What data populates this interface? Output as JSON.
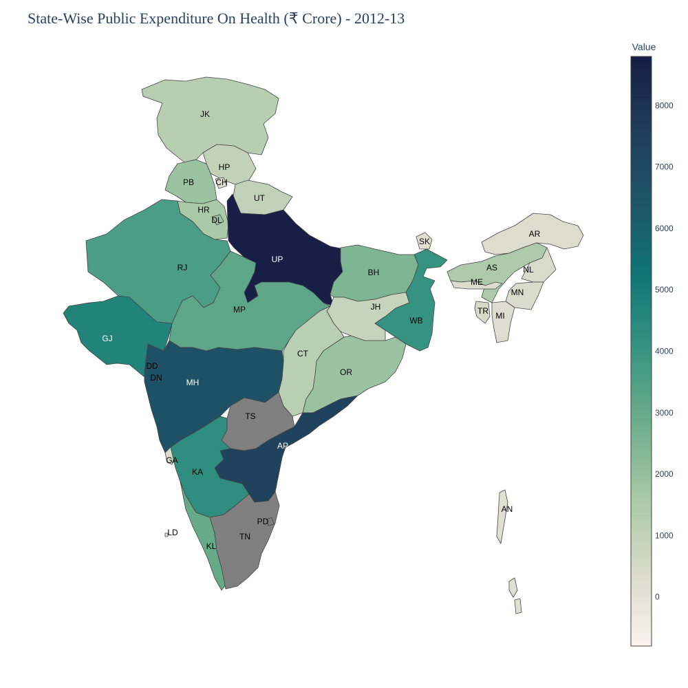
{
  "title": "State-Wise Public Expenditure On Health (₹ Crore) - 2012-13",
  "colorbar": {
    "title": "Value",
    "min": -800,
    "max": 8800,
    "ticks": [
      0,
      1000,
      2000,
      3000,
      4000,
      5000,
      6000,
      7000,
      8000
    ],
    "scale": [
      "#fcf2ee",
      "#d9dbca",
      "#a9c9a8",
      "#6fae8c",
      "#3a9582",
      "#0f7675",
      "#1e5567",
      "#1f3d59",
      "#161c45"
    ]
  },
  "chart_data": {
    "type": "choropleth",
    "value_label": "Value",
    "regions": [
      {
        "code": "JK",
        "value": 1250
      },
      {
        "code": "HP",
        "value": 1000
      },
      {
        "code": "PB",
        "value": 1900
      },
      {
        "code": "CH",
        "value": 300
      },
      {
        "code": "UT",
        "value": 1050
      },
      {
        "code": "HR",
        "value": 1600
      },
      {
        "code": "DL",
        "value": 1800
      },
      {
        "code": "RJ",
        "value": 3600
      },
      {
        "code": "UP",
        "value": 8700
      },
      {
        "code": "BH",
        "value": 2500
      },
      {
        "code": "SK",
        "value": 150
      },
      {
        "code": "AR",
        "value": 300
      },
      {
        "code": "AS",
        "value": 1500
      },
      {
        "code": "NL",
        "value": 400
      },
      {
        "code": "ME",
        "value": 300
      },
      {
        "code": "MN",
        "value": 350
      },
      {
        "code": "TR",
        "value": 450
      },
      {
        "code": "MI",
        "value": 250
      },
      {
        "code": "GJ",
        "value": 4700
      },
      {
        "code": "MP",
        "value": 3200
      },
      {
        "code": "JH",
        "value": 850
      },
      {
        "code": "WB",
        "value": 4100
      },
      {
        "code": "CT",
        "value": 1200
      },
      {
        "code": "OR",
        "value": 1900
      },
      {
        "code": "DD",
        "value": 20
      },
      {
        "code": "DN",
        "value": 30
      },
      {
        "code": "MH",
        "value": 6600
      },
      {
        "code": "TS",
        "value": null
      },
      {
        "code": "AP",
        "value": 7300
      },
      {
        "code": "GA",
        "value": 350
      },
      {
        "code": "KA",
        "value": 4300
      },
      {
        "code": "KL",
        "value": 3000
      },
      {
        "code": "TN",
        "value": null
      },
      {
        "code": "PD",
        "value": null
      },
      {
        "code": "LD",
        "value": 10
      },
      {
        "code": "AN",
        "value": 150
      }
    ]
  }
}
